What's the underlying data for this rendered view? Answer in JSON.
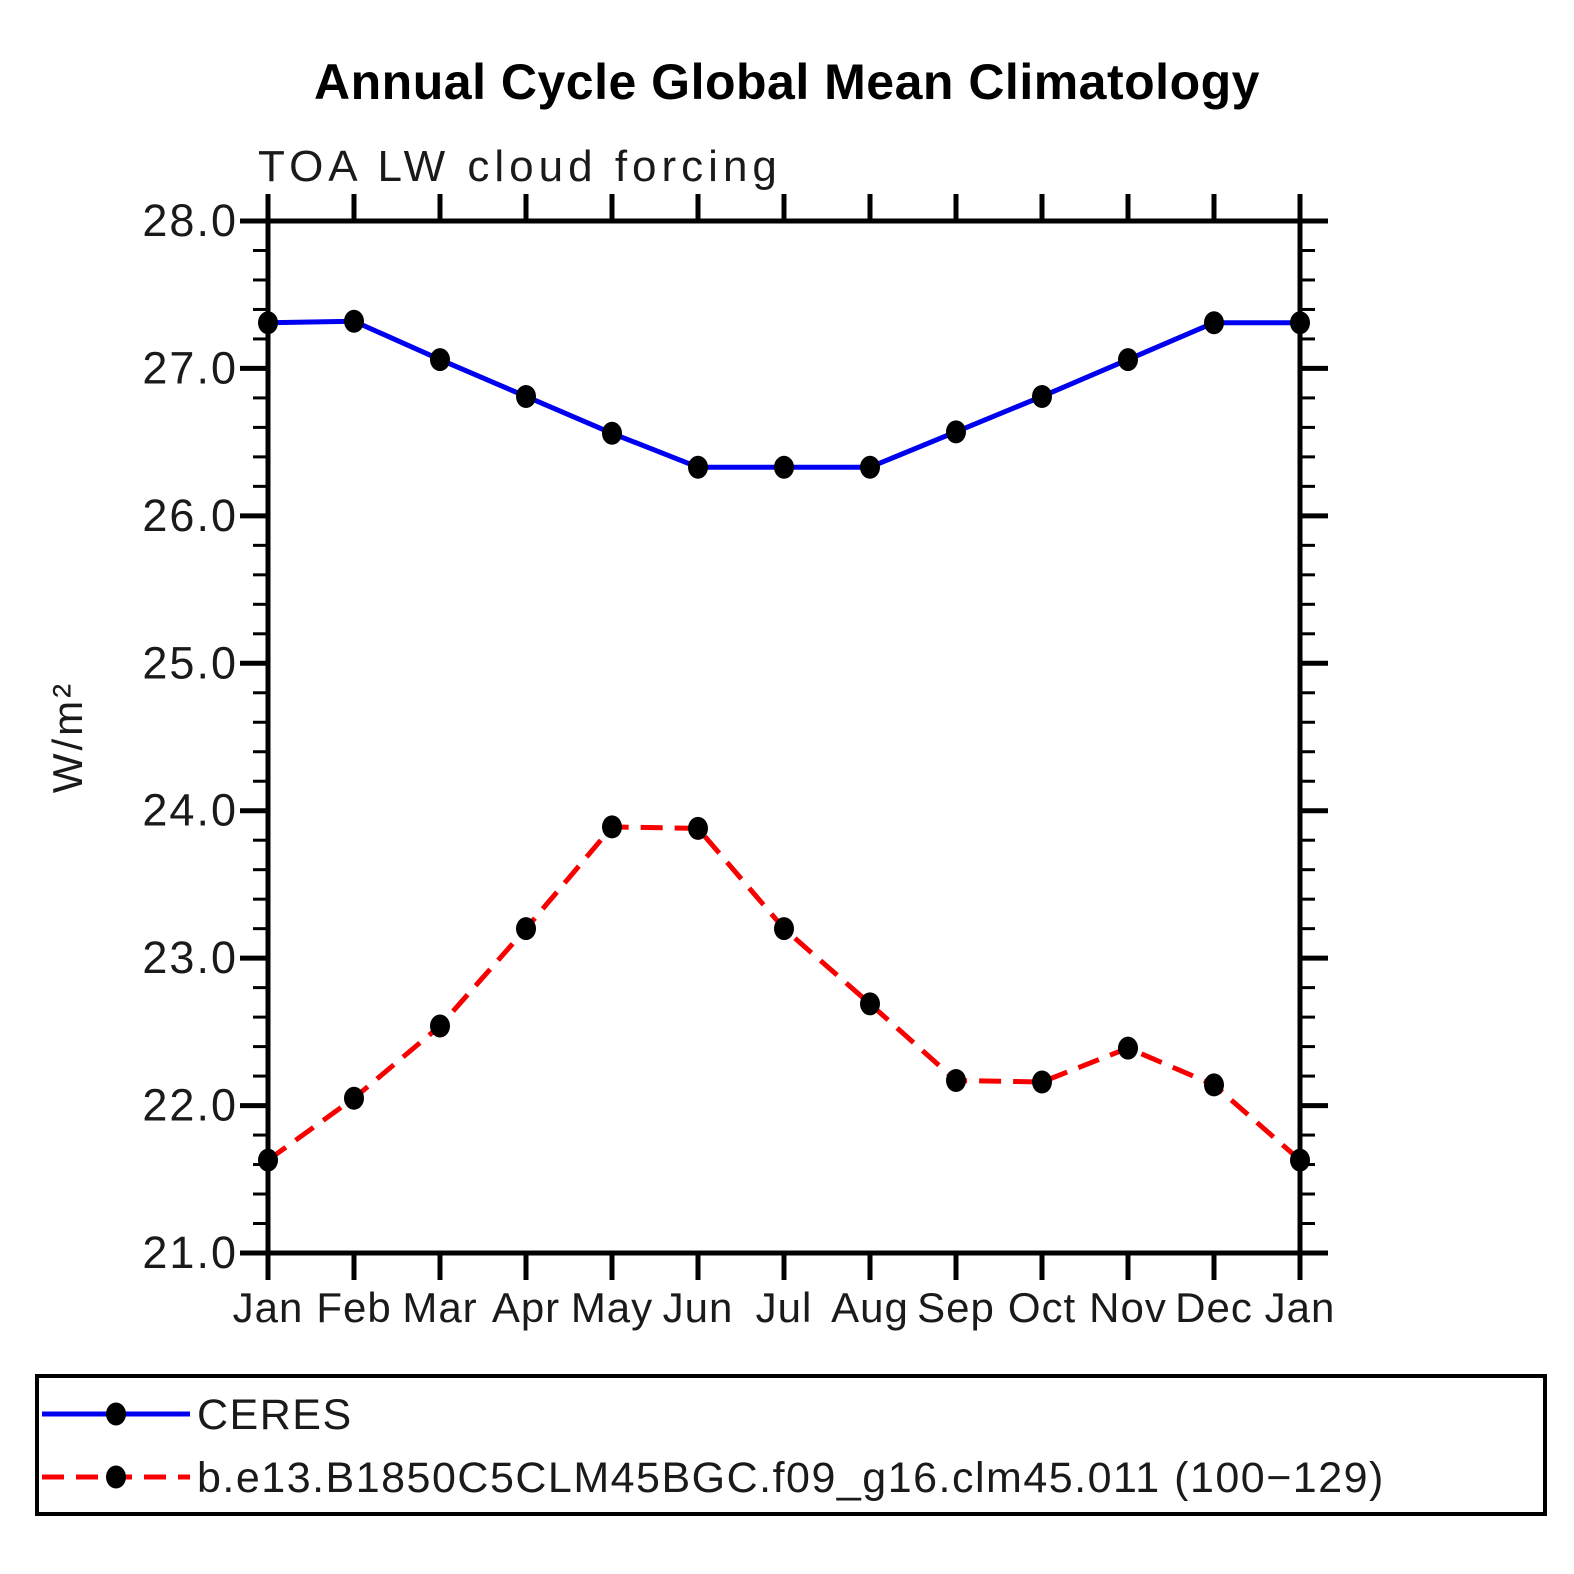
{
  "title": "Annual Cycle Global Mean Climatology",
  "subtitle": "TOA LW cloud forcing",
  "ylabel": "W/m²",
  "legend": {
    "position": "bottom",
    "entries": [
      {
        "label": "CERES",
        "color": "#0000f0",
        "line": "solid",
        "marker": "black-dot"
      },
      {
        "label": "b.e13.B1850C5CLM45BGC.f09_g16.clm45.011 (100−129)",
        "color": "#f80000",
        "line": "dashed",
        "marker": "black-dot"
      }
    ]
  },
  "chart_data": {
    "type": "line",
    "title": "Annual Cycle Global Mean Climatology",
    "subtitle": "TOA LW cloud forcing",
    "xlabel": "",
    "ylabel": "W/m²",
    "categories": [
      "Jan",
      "Feb",
      "Mar",
      "Apr",
      "May",
      "Jun",
      "Jul",
      "Aug",
      "Sep",
      "Oct",
      "Nov",
      "Dec",
      "Jan"
    ],
    "series": [
      {
        "name": "CERES",
        "color": "#0000f0",
        "line": "solid",
        "marker": "black-dot",
        "values": [
          27.31,
          27.32,
          27.06,
          26.81,
          26.56,
          26.33,
          26.33,
          26.33,
          26.57,
          26.81,
          27.06,
          27.31,
          27.31
        ]
      },
      {
        "name": "b.e13.B1850C5CLM45BGC.f09_g16.clm45.011 (100−129)",
        "color": "#f80000",
        "line": "dashed",
        "marker": "black-dot",
        "values": [
          21.63,
          22.05,
          22.54,
          23.2,
          23.89,
          23.88,
          23.2,
          22.69,
          22.17,
          22.16,
          22.39,
          22.14,
          21.63
        ]
      }
    ],
    "ylim": [
      21.0,
      28.0
    ],
    "ytick_major": 1.0,
    "ytick_minor": 0.2,
    "ytick_labels": [
      "21.0",
      "22.0",
      "23.0",
      "24.0",
      "25.0",
      "26.0",
      "27.0",
      "28.0"
    ],
    "grid": false,
    "legend_position": "bottom"
  }
}
